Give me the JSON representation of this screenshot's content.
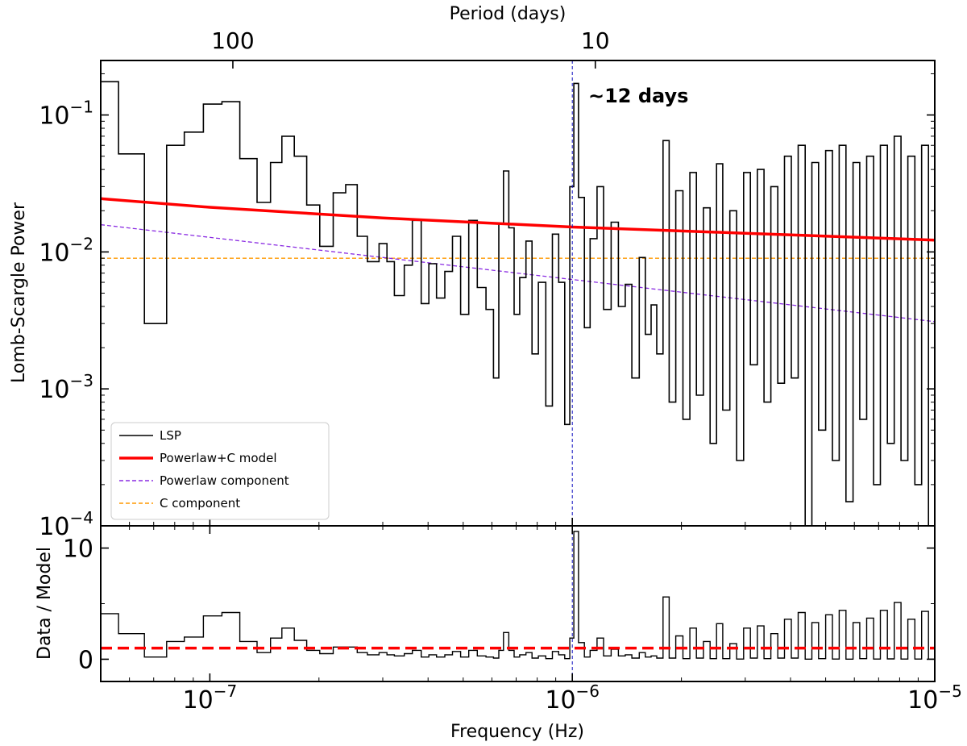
{
  "chart_data": [
    {
      "name": "top-panel",
      "type": "line",
      "title": "",
      "xlabel_top": "Period (days)",
      "ylabel": "Lomb-Scargle Power",
      "xscale": "log",
      "yscale": "log",
      "xlim": [
        5e-08,
        1e-05
      ],
      "ylim": [
        0.0001,
        0.25
      ],
      "y_ticks": [
        {
          "value": 0.1,
          "label": "10^-1"
        },
        {
          "value": 0.01,
          "label": "10^-2"
        },
        {
          "value": 0.001,
          "label": "10^-3"
        },
        {
          "value": 0.0001,
          "label": "10^-4"
        }
      ],
      "top_ticks": [
        {
          "period_days": 100,
          "label": "100"
        },
        {
          "period_days": 10,
          "label": "10"
        }
      ],
      "annotation": "~12 days",
      "marker_frequency": 1e-06,
      "series": [
        {
          "name": "LSP",
          "style": "steps",
          "color": "#000000",
          "x": [
            5e-08,
            5.6e-08,
            6.6e-08,
            7.6e-08,
            8.5e-08,
            9.6e-08,
            1.08e-07,
            1.21e-07,
            1.35e-07,
            1.47e-07,
            1.58e-07,
            1.71e-07,
            1.85e-07,
            2.01e-07,
            2.19e-07,
            2.37e-07,
            2.55e-07,
            2.72e-07,
            2.93e-07,
            3.08e-07,
            3.23e-07,
            3.44e-07,
            3.62e-07,
            3.83e-07,
            4.02e-07,
            4.22e-07,
            4.45e-07,
            4.67e-07,
            4.92e-07,
            5.18e-07,
            5.47e-07,
            5.78e-07,
            6.06e-07,
            6.27e-07,
            6.46e-07,
            6.68e-07,
            6.91e-07,
            7.16e-07,
            7.45e-07,
            7.74e-07,
            8.06e-07,
            8.45e-07,
            8.81e-07,
            9.17e-07,
            9.53e-07,
            9.84e-07,
            1.01e-06,
            1.04e-06,
            1.08e-06,
            1.12e-06,
            1.17e-06,
            1.22e-06,
            1.28e-06,
            1.34e-06,
            1.4e-06,
            1.46e-06,
            1.53e-06,
            1.59e-06,
            1.65e-06,
            1.71e-06,
            1.78e-06,
            1.85e-06,
            1.93e-06,
            2.02e-06,
            2.11e-06,
            2.2e-06,
            2.3e-06,
            2.4e-06,
            2.5e-06,
            2.6e-06,
            2.72e-06,
            2.84e-06,
            2.97e-06,
            3.1e-06,
            3.24e-06,
            3.38e-06,
            3.53e-06,
            3.69e-06,
            3.85e-06,
            4.02e-06,
            4.2e-06,
            4.39e-06,
            4.58e-06,
            4.78e-06,
            5e-06,
            5.22e-06,
            5.45e-06,
            5.69e-06,
            5.95e-06,
            6.21e-06,
            6.49e-06,
            6.78e-06,
            7.08e-06,
            7.4e-06,
            7.73e-06,
            8.07e-06,
            8.43e-06,
            8.81e-06,
            9.2e-06,
            9.61e-06,
            1e-05
          ],
          "y": [
            0.175,
            0.052,
            0.003,
            0.06,
            0.075,
            0.12,
            0.125,
            0.048,
            0.023,
            0.045,
            0.07,
            0.05,
            0.022,
            0.011,
            0.027,
            0.031,
            0.013,
            0.0085,
            0.0115,
            0.0085,
            0.0048,
            0.008,
            0.017,
            0.0042,
            0.0082,
            0.0046,
            0.0072,
            0.013,
            0.0035,
            0.017,
            0.0055,
            0.0038,
            0.0012,
            0.016,
            0.039,
            0.015,
            0.0035,
            0.0065,
            0.012,
            0.0018,
            0.006,
            0.00075,
            0.0135,
            0.006,
            0.00055,
            0.03,
            0.17,
            0.025,
            0.0028,
            0.0125,
            0.03,
            0.0038,
            0.0165,
            0.004,
            0.0058,
            0.0012,
            0.0091,
            0.0025,
            0.0041,
            0.0018,
            0.065,
            0.0008,
            0.028,
            0.0006,
            0.038,
            0.0009,
            0.021,
            0.0004,
            0.044,
            0.0007,
            0.02,
            0.0003,
            0.038,
            0.0015,
            0.04,
            0.0008,
            0.03,
            0.0011,
            0.05,
            0.0012,
            0.06,
            0.0001,
            0.045,
            0.0005,
            0.055,
            0.0003,
            0.06,
            0.00015,
            0.045,
            0.0006,
            0.05,
            0.0002,
            0.06,
            0.0004,
            0.07,
            0.0003,
            0.05,
            0.0002,
            0.06,
            0.0001,
            0.04
          ]
        },
        {
          "name": "Powerlaw+C model",
          "style": "solid",
          "color": "#ff0000",
          "x": [
            5e-08,
            1e-07,
            3e-07,
            1e-06,
            3e-06,
            1e-05
          ],
          "y": [
            0.0245,
            0.0212,
            0.0177,
            0.0152,
            0.0137,
            0.0122
          ]
        },
        {
          "name": "Powerlaw component",
          "style": "dashed",
          "color": "#8a2be2",
          "x": [
            5e-08,
            1e-05
          ],
          "y": [
            0.0158,
            0.0031
          ]
        },
        {
          "name": "C component",
          "style": "dashed",
          "color": "#ff9900",
          "x": [
            5e-08,
            1e-05
          ],
          "y": [
            0.009,
            0.009
          ]
        }
      ],
      "legend": {
        "position": "bottom-left",
        "entries": [
          "LSP",
          "Powerlaw+C model",
          "Powerlaw component",
          "C component"
        ]
      }
    },
    {
      "name": "bottom-panel",
      "type": "line",
      "xlabel": "Frequency (Hz)",
      "ylabel": "Data / Model",
      "xscale": "log",
      "yscale": "linear",
      "xlim": [
        5e-08,
        1e-05
      ],
      "ylim": [
        -2,
        12
      ],
      "x_ticks": [
        {
          "value": 1e-07,
          "label": "10^-7"
        },
        {
          "value": 1e-06,
          "label": "10^-6"
        },
        {
          "value": 1e-05,
          "label": "10^-5"
        }
      ],
      "y_ticks": [
        {
          "value": 0,
          "label": "0"
        },
        {
          "value": 10,
          "label": "10"
        }
      ],
      "reference_line": 1,
      "series": [
        {
          "name": "Data/Model",
          "style": "steps",
          "color": "#000000",
          "x": [
            5e-08,
            5.6e-08,
            6.6e-08,
            7.6e-08,
            8.5e-08,
            9.6e-08,
            1.08e-07,
            1.21e-07,
            1.35e-07,
            1.47e-07,
            1.58e-07,
            1.71e-07,
            1.85e-07,
            2.01e-07,
            2.19e-07,
            2.37e-07,
            2.55e-07,
            2.72e-07,
            2.93e-07,
            3.08e-07,
            3.23e-07,
            3.44e-07,
            3.62e-07,
            3.83e-07,
            4.02e-07,
            4.22e-07,
            4.45e-07,
            4.67e-07,
            4.92e-07,
            5.18e-07,
            5.47e-07,
            5.78e-07,
            6.06e-07,
            6.27e-07,
            6.46e-07,
            6.68e-07,
            6.91e-07,
            7.16e-07,
            7.45e-07,
            7.74e-07,
            8.06e-07,
            8.45e-07,
            8.81e-07,
            9.17e-07,
            9.53e-07,
            9.84e-07,
            1.01e-06,
            1.04e-06,
            1.08e-06,
            1.12e-06,
            1.17e-06,
            1.22e-06,
            1.28e-06,
            1.34e-06,
            1.4e-06,
            1.46e-06,
            1.53e-06,
            1.59e-06,
            1.65e-06,
            1.71e-06,
            1.78e-06,
            1.85e-06,
            1.93e-06,
            2.02e-06,
            2.11e-06,
            2.2e-06,
            2.3e-06,
            2.4e-06,
            2.5e-06,
            2.6e-06,
            2.72e-06,
            2.84e-06,
            2.97e-06,
            3.1e-06,
            3.24e-06,
            3.38e-06,
            3.53e-06,
            3.69e-06,
            3.85e-06,
            4.02e-06,
            4.2e-06,
            4.39e-06,
            4.58e-06,
            4.78e-06,
            5e-06,
            5.22e-06,
            5.45e-06,
            5.69e-06,
            5.95e-06,
            6.21e-06,
            6.49e-06,
            6.78e-06,
            7.08e-06,
            7.4e-06,
            7.73e-06,
            8.07e-06,
            8.43e-06,
            8.81e-06,
            9.2e-06,
            9.61e-06,
            1e-05
          ],
          "y": [
            4.1,
            2.3,
            0.2,
            1.6,
            2.0,
            3.9,
            4.2,
            1.6,
            0.6,
            1.9,
            2.8,
            1.7,
            0.8,
            0.5,
            1.1,
            1.1,
            0.6,
            0.4,
            0.6,
            0.4,
            0.3,
            0.5,
            0.8,
            0.2,
            0.4,
            0.2,
            0.4,
            0.7,
            0.2,
            0.8,
            0.3,
            0.2,
            0.1,
            0.8,
            2.4,
            0.8,
            0.2,
            0.4,
            0.6,
            0.1,
            0.3,
            0.05,
            0.7,
            0.4,
            0.05,
            1.9,
            11.5,
            1.5,
            0.2,
            0.8,
            1.9,
            0.3,
            0.9,
            0.3,
            0.4,
            0.1,
            0.6,
            0.2,
            0.3,
            0.1,
            5.6,
            0.1,
            2.1,
            0.05,
            2.8,
            0.1,
            1.6,
            0.05,
            3.2,
            0.05,
            1.4,
            0.02,
            2.8,
            0.1,
            3.0,
            0.05,
            2.3,
            0.1,
            3.6,
            0.1,
            4.2,
            0.01,
            3.3,
            0.05,
            4.0,
            0.02,
            4.4,
            0.01,
            3.3,
            0.05,
            3.7,
            0.02,
            4.4,
            0.03,
            5.1,
            0.02,
            3.6,
            0.02,
            4.3,
            0.01,
            3.2
          ]
        }
      ]
    }
  ]
}
